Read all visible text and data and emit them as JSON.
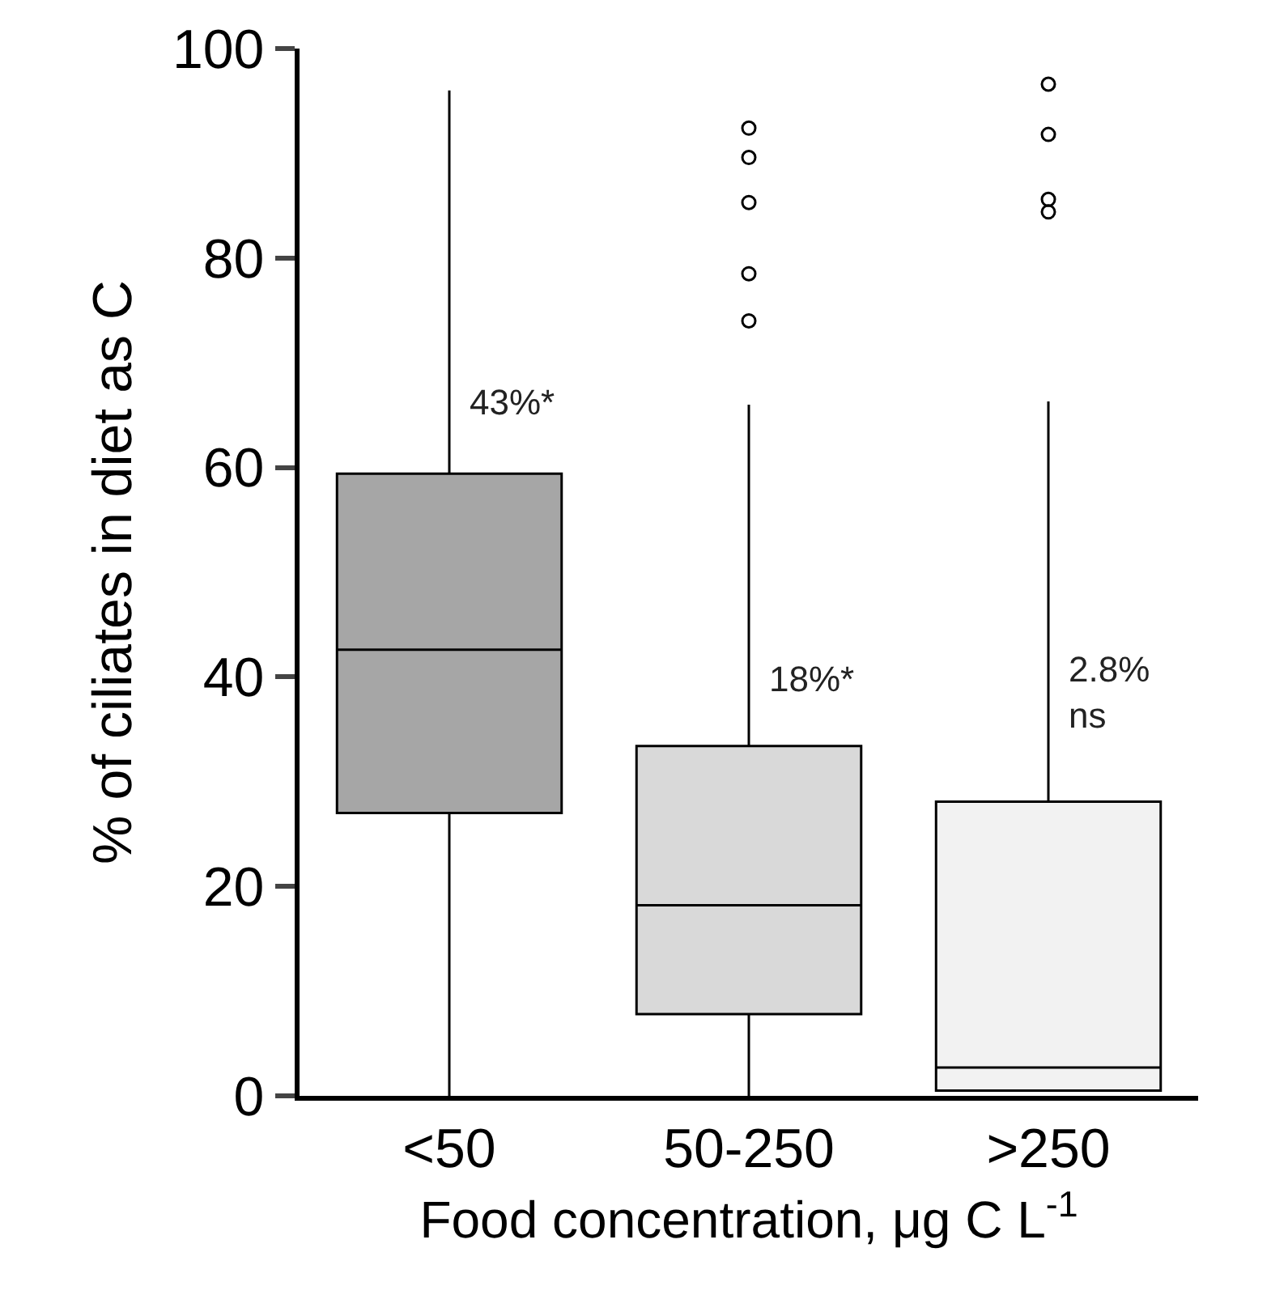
{
  "chart_data": {
    "type": "box",
    "xlabel": "Food concentration, μg C L$^{-1}$",
    "ylabel": "% of ciliates in diet as C",
    "categories": [
      "<50",
      "50-250",
      ">250"
    ],
    "colors": [
      "#a6a6a6",
      "#d9d9d9",
      "#f2f2f2"
    ],
    "boxes": [
      {
        "low": 0,
        "q1": 27,
        "median": 42.6,
        "q3": 59.4,
        "high": 96
      },
      {
        "low": 0,
        "q1": 7.8,
        "median": 18.2,
        "q3": 33.4,
        "high": 66,
        "outliers": [
          92.4,
          89.6,
          85.3,
          78.5,
          74
        ]
      },
      {
        "low": 0.5,
        "q1": 0.5,
        "median": 2.7,
        "q3": 28.1,
        "high": 66.3,
        "outliers": [
          96.6,
          91.8,
          85.6,
          84.4
        ]
      }
    ],
    "ylim": [
      0,
      100
    ],
    "yticks": [
      0,
      20,
      40,
      60,
      80,
      100
    ],
    "annotations": [
      {
        "text": "43%*",
        "x": "<50",
        "y": 64
      },
      {
        "text": "18%*",
        "x": "50-250",
        "y": 37.5
      },
      {
        "text": "2.8%\nns",
        "x": ">250",
        "y": 34
      }
    ]
  }
}
